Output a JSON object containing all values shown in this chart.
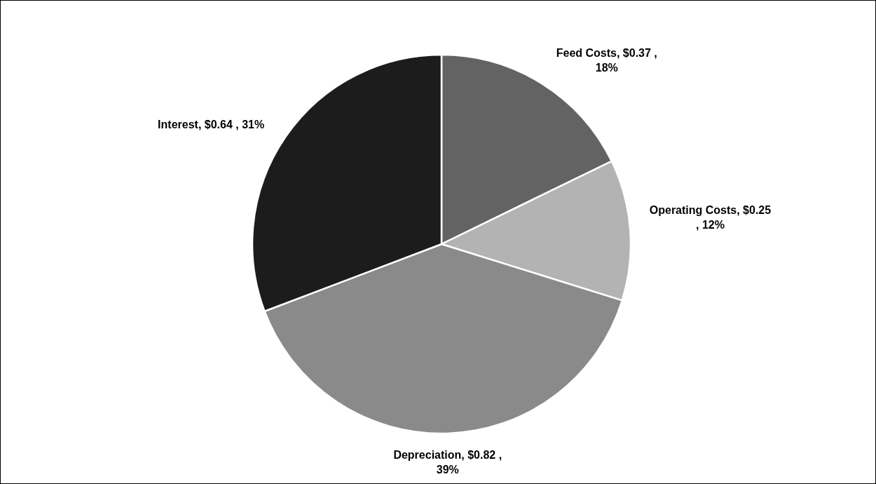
{
  "chart_data": {
    "type": "pie",
    "categories": [
      "Feed Costs",
      "Operating Costs",
      "Depreciation",
      "Interest"
    ],
    "values": [
      0.37,
      0.25,
      0.82,
      0.64
    ],
    "colors": [
      "#636363",
      "#b3b3b3",
      "#8a8a8a",
      "#1c1c1c"
    ],
    "value_labels": [
      "$0.37 , 18%",
      "$0.25 , 12%",
      "$0.82 , 39%",
      "$0.64 , 31%"
    ]
  }
}
